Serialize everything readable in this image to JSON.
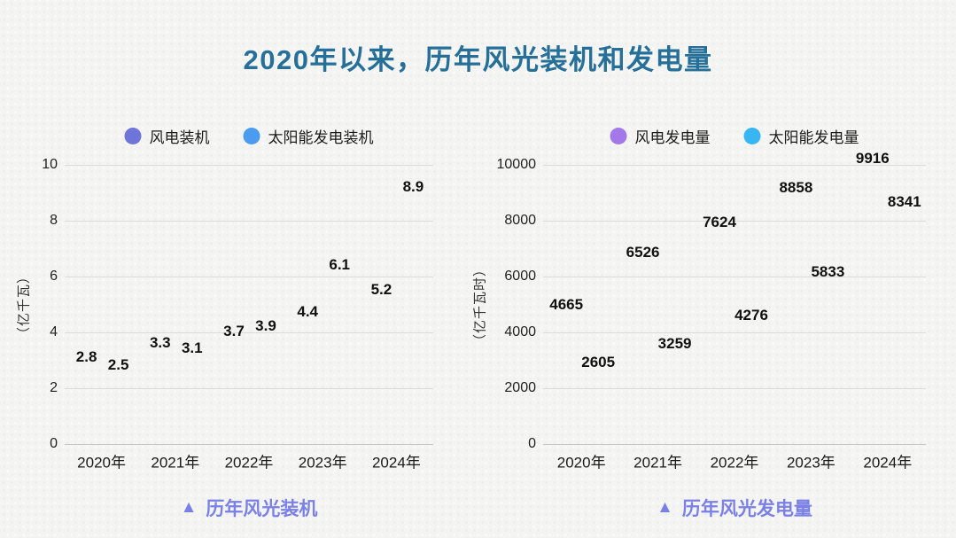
{
  "title": "2020年以来，历年风光装机和发电量",
  "colors": {
    "title": "#256f99",
    "caption": "#7b80e6",
    "background": "#f4f4f2",
    "gridline": "#dcdcdc",
    "wind_installed": "#6f74d8",
    "solar_installed": "#4b9bf0",
    "wind_generation": "#a478e8",
    "solar_generation": "#38b6f3"
  },
  "chart_data": [
    {
      "type": "scatter",
      "id": "installed-capacity",
      "categories": [
        "2020年",
        "2021年",
        "2022年",
        "2023年",
        "2024年"
      ],
      "series": [
        {
          "name": "风电装机",
          "color": "#6f74d8",
          "values": [
            2.8,
            3.3,
            3.7,
            4.4,
            5.2
          ]
        },
        {
          "name": "太阳能发电装机",
          "color": "#4b9bf0",
          "values": [
            2.5,
            3.1,
            3.9,
            6.1,
            8.9
          ]
        }
      ],
      "ylabel": "（亿千瓦）",
      "ylim": [
        0,
        10
      ],
      "y_ticks": [
        0,
        2,
        4,
        6,
        8,
        10
      ],
      "grid": true,
      "legend_position": "top",
      "markers_hidden": true,
      "data_labels_shown": true,
      "caption": {
        "icon": "▲",
        "text": "历年风光装机"
      }
    },
    {
      "type": "scatter",
      "id": "generation",
      "categories": [
        "2020年",
        "2021年",
        "2022年",
        "2023年",
        "2024年"
      ],
      "series": [
        {
          "name": "风电发电量",
          "color": "#a478e8",
          "values": [
            4665,
            6526,
            7624,
            8858,
            9916
          ]
        },
        {
          "name": "太阳能发电量",
          "color": "#38b6f3",
          "values": [
            2605,
            3259,
            4276,
            5833,
            8341
          ]
        }
      ],
      "ylabel": "（亿千瓦时）",
      "ylim": [
        0,
        10000
      ],
      "y_ticks": [
        0,
        2000,
        4000,
        6000,
        8000,
        10000
      ],
      "grid": true,
      "legend_position": "top",
      "markers_hidden": true,
      "data_labels_shown": true,
      "caption": {
        "icon": "▲",
        "text": "历年风光发电量"
      }
    }
  ]
}
